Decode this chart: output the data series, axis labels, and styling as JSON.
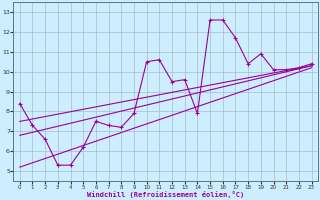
{
  "xlabel": "Windchill (Refroidissement éolien,°C)",
  "bg_color": "#cceeff",
  "line_color": "#990099",
  "grid_color": "#aabbcc",
  "xlim": [
    -0.5,
    23.5
  ],
  "ylim": [
    4.5,
    13.5
  ],
  "xticks": [
    0,
    1,
    2,
    3,
    4,
    5,
    6,
    7,
    8,
    9,
    10,
    11,
    12,
    13,
    14,
    15,
    16,
    17,
    18,
    19,
    20,
    21,
    22,
    23
  ],
  "yticks": [
    5,
    6,
    7,
    8,
    9,
    10,
    11,
    12,
    13
  ],
  "main_x": [
    0,
    1,
    2,
    3,
    4,
    5,
    6,
    7,
    8,
    9,
    10,
    11,
    12,
    13,
    14,
    15,
    16,
    17,
    18,
    19,
    20,
    21,
    22,
    23
  ],
  "main_y": [
    8.4,
    7.3,
    6.6,
    5.3,
    5.3,
    6.2,
    7.5,
    7.3,
    7.2,
    7.9,
    10.5,
    10.6,
    9.5,
    9.6,
    7.9,
    12.6,
    12.6,
    11.7,
    10.4,
    10.9,
    10.1,
    10.1,
    10.2,
    10.4
  ],
  "trend1_x": [
    0,
    23
  ],
  "trend1_y": [
    7.5,
    10.3
  ],
  "trend2_x": [
    0,
    23
  ],
  "trend2_y": [
    5.2,
    10.2
  ],
  "trend3_x": [
    0,
    23
  ],
  "trend3_y": [
    6.8,
    10.3
  ]
}
